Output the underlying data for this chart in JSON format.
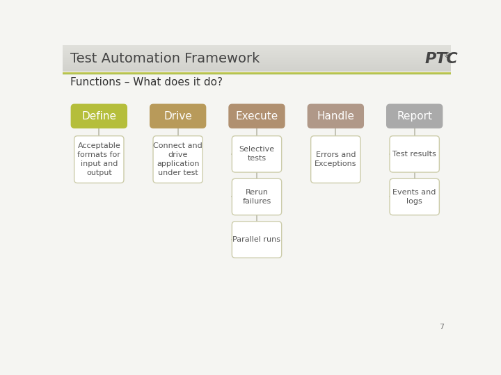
{
  "title": "Test Automation Framework",
  "subtitle": "Functions – What does it do?",
  "page_number": "7",
  "background_color": "#f5f5f2",
  "header_bg_top": "#d4d4cc",
  "header_bg_bottom": "#e8e8e2",
  "accent_line_color": "#c8c870",
  "accent_line2_color": "#a8b870",
  "columns": [
    {
      "label": "Define",
      "header_color": "#b5be3b",
      "items": [
        "Acceptable\nformats for\ninput and\noutput"
      ]
    },
    {
      "label": "Drive",
      "header_color": "#b89a5a",
      "items": [
        "Connect and\ndrive\napplication\nunder test"
      ]
    },
    {
      "label": "Execute",
      "header_color": "#b09070",
      "items": [
        "Selective\ntests",
        "Rerun\nfailures",
        "Parallel runs"
      ]
    },
    {
      "label": "Handle",
      "header_color": "#b09888",
      "items": [
        "Errors and\nExceptions"
      ]
    },
    {
      "label": "Report",
      "header_color": "#aaaaaa",
      "items": [
        "Test results",
        "Events and\nlogs"
      ]
    }
  ],
  "item_box_color": "#ffffff",
  "item_box_edge": "#ccccaa",
  "item_text_color": "#555555",
  "header_text_color": "#ffffff",
  "title_color": "#444444",
  "subtitle_color": "#333333",
  "connector_color": "#bbbbaa",
  "ptc_color": "#444444"
}
